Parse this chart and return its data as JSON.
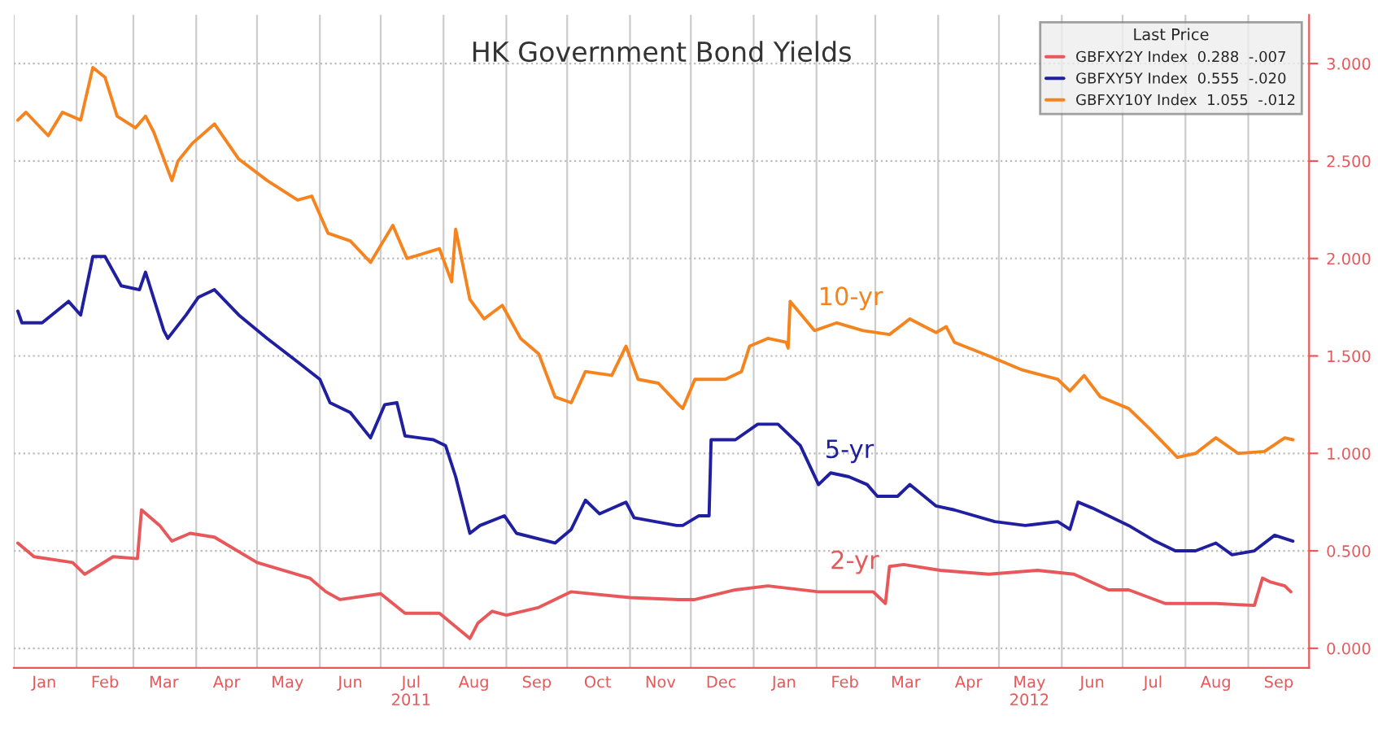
{
  "chart_data": {
    "type": "line",
    "title": "HK Government Bond Yields",
    "series": [
      {
        "name": "GBFXY2Y Index  0.288  -.007",
        "color": "#e8585a",
        "x": [
          "2011-01-03",
          "2011-01-11",
          "2011-01-30",
          "2011-02-05",
          "2011-02-19",
          "2011-03-03",
          "2011-03-05",
          "2011-03-14",
          "2011-03-20",
          "2011-03-29",
          "2011-04-10",
          "2011-05-01",
          "2011-05-27",
          "2011-06-04",
          "2011-06-11",
          "2011-07-01",
          "2011-07-13",
          "2011-07-30",
          "2011-08-14",
          "2011-08-18",
          "2011-08-25",
          "2011-09-01",
          "2011-09-17",
          "2011-10-03",
          "2011-11-01",
          "2011-11-25",
          "2011-12-03",
          "2011-12-23",
          "2012-01-08",
          "2012-02-02",
          "2012-02-29",
          "2012-03-06",
          "2012-03-08",
          "2012-03-15",
          "2012-04-02",
          "2012-04-26",
          "2012-05-20",
          "2012-06-07",
          "2012-06-24",
          "2012-07-04",
          "2012-07-22",
          "2012-08-16",
          "2012-09-04",
          "2012-09-08",
          "2012-09-12",
          "2012-09-19",
          "2012-09-22"
        ],
        "values": [
          0.54,
          0.47,
          0.44,
          0.38,
          0.47,
          0.46,
          0.71,
          0.63,
          0.55,
          0.59,
          0.57,
          0.44,
          0.36,
          0.29,
          0.25,
          0.28,
          0.18,
          0.18,
          0.05,
          0.13,
          0.19,
          0.17,
          0.21,
          0.29,
          0.26,
          0.25,
          0.25,
          0.3,
          0.32,
          0.29,
          0.29,
          0.23,
          0.42,
          0.43,
          0.4,
          0.38,
          0.4,
          0.38,
          0.3,
          0.3,
          0.23,
          0.23,
          0.22,
          0.36,
          0.34,
          0.32,
          0.29
        ]
      },
      {
        "name": "GBFXY5Y Index  0.555  -.020",
        "color": "#1f1fa0",
        "x": [
          "2011-01-03",
          "2011-01-05",
          "2011-01-15",
          "2011-01-28",
          "2011-02-03",
          "2011-02-09",
          "2011-02-15",
          "2011-02-23",
          "2011-03-04",
          "2011-03-07",
          "2011-03-16",
          "2011-03-18",
          "2011-03-27",
          "2011-04-02",
          "2011-04-10",
          "2011-04-22",
          "2011-05-06",
          "2011-05-21",
          "2011-06-01",
          "2011-06-06",
          "2011-06-16",
          "2011-06-26",
          "2011-07-03",
          "2011-07-09",
          "2011-07-13",
          "2011-07-27",
          "2011-08-02",
          "2011-08-07",
          "2011-08-14",
          "2011-08-19",
          "2011-08-31",
          "2011-09-06",
          "2011-09-25",
          "2011-10-03",
          "2011-10-10",
          "2011-10-17",
          "2011-10-30",
          "2011-11-03",
          "2011-11-24",
          "2011-11-27",
          "2011-12-05",
          "2011-12-10",
          "2011-12-11",
          "2011-12-23",
          "2012-01-03",
          "2012-01-13",
          "2012-01-24",
          "2012-02-02",
          "2012-02-08",
          "2012-02-17",
          "2012-02-26",
          "2012-03-02",
          "2012-03-12",
          "2012-03-18",
          "2012-03-31",
          "2012-04-09",
          "2012-04-29",
          "2012-05-14",
          "2012-05-30",
          "2012-06-05",
          "2012-06-09",
          "2012-06-16",
          "2012-07-04",
          "2012-07-17",
          "2012-07-27",
          "2012-08-06",
          "2012-08-16",
          "2012-08-24",
          "2012-09-04",
          "2012-09-14",
          "2012-09-23"
        ],
        "values": [
          1.73,
          1.67,
          1.67,
          1.78,
          1.71,
          2.01,
          2.01,
          1.86,
          1.84,
          1.93,
          1.63,
          1.59,
          1.71,
          1.8,
          1.84,
          1.71,
          1.59,
          1.47,
          1.38,
          1.26,
          1.21,
          1.08,
          1.25,
          1.26,
          1.09,
          1.07,
          1.04,
          0.88,
          0.59,
          0.63,
          0.68,
          0.59,
          0.54,
          0.61,
          0.76,
          0.69,
          0.75,
          0.67,
          0.63,
          0.63,
          0.68,
          0.68,
          1.07,
          1.07,
          1.15,
          1.15,
          1.04,
          0.84,
          0.9,
          0.88,
          0.84,
          0.78,
          0.78,
          0.84,
          0.73,
          0.71,
          0.65,
          0.63,
          0.65,
          0.61,
          0.75,
          0.72,
          0.63,
          0.55,
          0.5,
          0.5,
          0.54,
          0.48,
          0.5,
          0.58,
          0.55
        ]
      },
      {
        "name": "GBFXY10Y Index  1.055  -.012",
        "color": "#f5841f",
        "x": [
          "2011-01-03",
          "2011-01-07",
          "2011-01-18",
          "2011-01-25",
          "2011-02-03",
          "2011-02-09",
          "2011-02-15",
          "2011-02-21",
          "2011-03-02",
          "2011-03-07",
          "2011-03-11",
          "2011-03-20",
          "2011-03-23",
          "2011-03-30",
          "2011-04-10",
          "2011-04-22",
          "2011-05-06",
          "2011-05-21",
          "2011-05-28",
          "2011-06-05",
          "2011-06-16",
          "2011-06-26",
          "2011-07-07",
          "2011-07-14",
          "2011-07-30",
          "2011-08-05",
          "2011-08-07",
          "2011-08-14",
          "2011-08-21",
          "2011-08-30",
          "2011-09-08",
          "2011-09-17",
          "2011-09-25",
          "2011-10-03",
          "2011-10-10",
          "2011-10-23",
          "2011-10-30",
          "2011-11-05",
          "2011-11-15",
          "2011-11-25",
          "2011-11-27",
          "2011-12-03",
          "2011-12-18",
          "2011-12-26",
          "2011-12-30",
          "2012-01-08",
          "2012-01-17",
          "2012-01-18",
          "2012-01-19",
          "2012-01-31",
          "2012-02-11",
          "2012-02-24",
          "2012-03-08",
          "2012-03-18",
          "2012-03-31",
          "2012-04-05",
          "2012-04-09",
          "2012-04-26",
          "2012-05-12",
          "2012-05-30",
          "2012-06-05",
          "2012-06-12",
          "2012-06-20",
          "2012-07-04",
          "2012-07-14",
          "2012-07-28",
          "2012-08-06",
          "2012-08-16",
          "2012-08-27",
          "2012-09-09",
          "2012-09-19",
          "2012-09-23"
        ],
        "values": [
          2.71,
          2.75,
          2.63,
          2.75,
          2.71,
          2.98,
          2.93,
          2.73,
          2.67,
          2.73,
          2.65,
          2.4,
          2.5,
          2.59,
          2.69,
          2.51,
          2.4,
          2.3,
          2.32,
          2.13,
          2.09,
          1.98,
          2.17,
          2.0,
          2.05,
          1.88,
          2.15,
          1.79,
          1.69,
          1.76,
          1.59,
          1.51,
          1.29,
          1.26,
          1.42,
          1.4,
          1.55,
          1.38,
          1.36,
          1.25,
          1.23,
          1.38,
          1.38,
          1.42,
          1.55,
          1.59,
          1.57,
          1.54,
          1.78,
          1.63,
          1.67,
          1.63,
          1.61,
          1.69,
          1.62,
          1.65,
          1.57,
          1.5,
          1.43,
          1.38,
          1.32,
          1.4,
          1.29,
          1.23,
          1.13,
          0.98,
          1.0,
          1.08,
          1.0,
          1.01,
          1.08,
          1.07
        ]
      }
    ],
    "annotations": [
      "10-yr",
      "5-yr",
      "2-yr"
    ],
    "xlim": [
      "2011-01-01",
      "2012-10-01"
    ],
    "xticks": [
      {
        "value": "2011-01-01",
        "label": null
      },
      {
        "value": "2011-01-16",
        "label": "Jan"
      },
      {
        "value": "2011-02-01",
        "label": null
      },
      {
        "value": "2011-02-15",
        "label": "Feb"
      },
      {
        "value": "2011-03-01",
        "label": null
      },
      {
        "value": "2011-03-16",
        "label": "Mar"
      },
      {
        "value": "2011-04-01",
        "label": null
      },
      {
        "value": "2011-04-16",
        "label": "Apr"
      },
      {
        "value": "2011-05-01",
        "label": null
      },
      {
        "value": "2011-05-16",
        "label": "May"
      },
      {
        "value": "2011-06-01",
        "label": null
      },
      {
        "value": "2011-06-16",
        "label": "Jun"
      },
      {
        "value": "2011-07-01",
        "label": null
      },
      {
        "value": "2011-07-16",
        "label": "Jul\n2011"
      },
      {
        "value": "2011-08-01",
        "label": null
      },
      {
        "value": "2011-08-16",
        "label": "Aug"
      },
      {
        "value": "2011-09-01",
        "label": null
      },
      {
        "value": "2011-09-16",
        "label": "Sep"
      },
      {
        "value": "2011-10-01",
        "label": null
      },
      {
        "value": "2011-10-16",
        "label": "Oct"
      },
      {
        "value": "2011-11-01",
        "label": null
      },
      {
        "value": "2011-11-16",
        "label": "Nov"
      },
      {
        "value": "2011-12-01",
        "label": null
      },
      {
        "value": "2011-12-16",
        "label": "Dec"
      },
      {
        "value": "2012-01-01",
        "label": null
      },
      {
        "value": "2012-01-16",
        "label": "Jan"
      },
      {
        "value": "2012-02-01",
        "label": null
      },
      {
        "value": "2012-02-15",
        "label": "Feb"
      },
      {
        "value": "2012-03-01",
        "label": null
      },
      {
        "value": "2012-03-16",
        "label": "Mar"
      },
      {
        "value": "2012-04-01",
        "label": null
      },
      {
        "value": "2012-04-16",
        "label": "Apr"
      },
      {
        "value": "2012-05-01",
        "label": null
      },
      {
        "value": "2012-05-16",
        "label": "May\n2012"
      },
      {
        "value": "2012-06-01",
        "label": null
      },
      {
        "value": "2012-06-16",
        "label": "Jun"
      },
      {
        "value": "2012-07-01",
        "label": null
      },
      {
        "value": "2012-07-16",
        "label": "Jul"
      },
      {
        "value": "2012-08-01",
        "label": null
      },
      {
        "value": "2012-08-16",
        "label": "Aug"
      },
      {
        "value": "2012-09-01",
        "label": null
      },
      {
        "value": "2012-09-16",
        "label": "Sep"
      }
    ],
    "ylim": [
      -0.1,
      3.25
    ],
    "yticks": [
      {
        "value": 0,
        "label": "0.000"
      },
      {
        "value": 0.5,
        "label": "0.500"
      },
      {
        "value": 1,
        "label": "1.000"
      },
      {
        "value": 1.5,
        "label": "1.500"
      },
      {
        "value": 2,
        "label": "2.000"
      },
      {
        "value": 2.5,
        "label": "2.500"
      },
      {
        "value": 3,
        "label": "3.000"
      }
    ],
    "grid": true,
    "legend": "top right",
    "legend_title": "Last Price",
    "marker": "none",
    "line_style": "solid"
  }
}
